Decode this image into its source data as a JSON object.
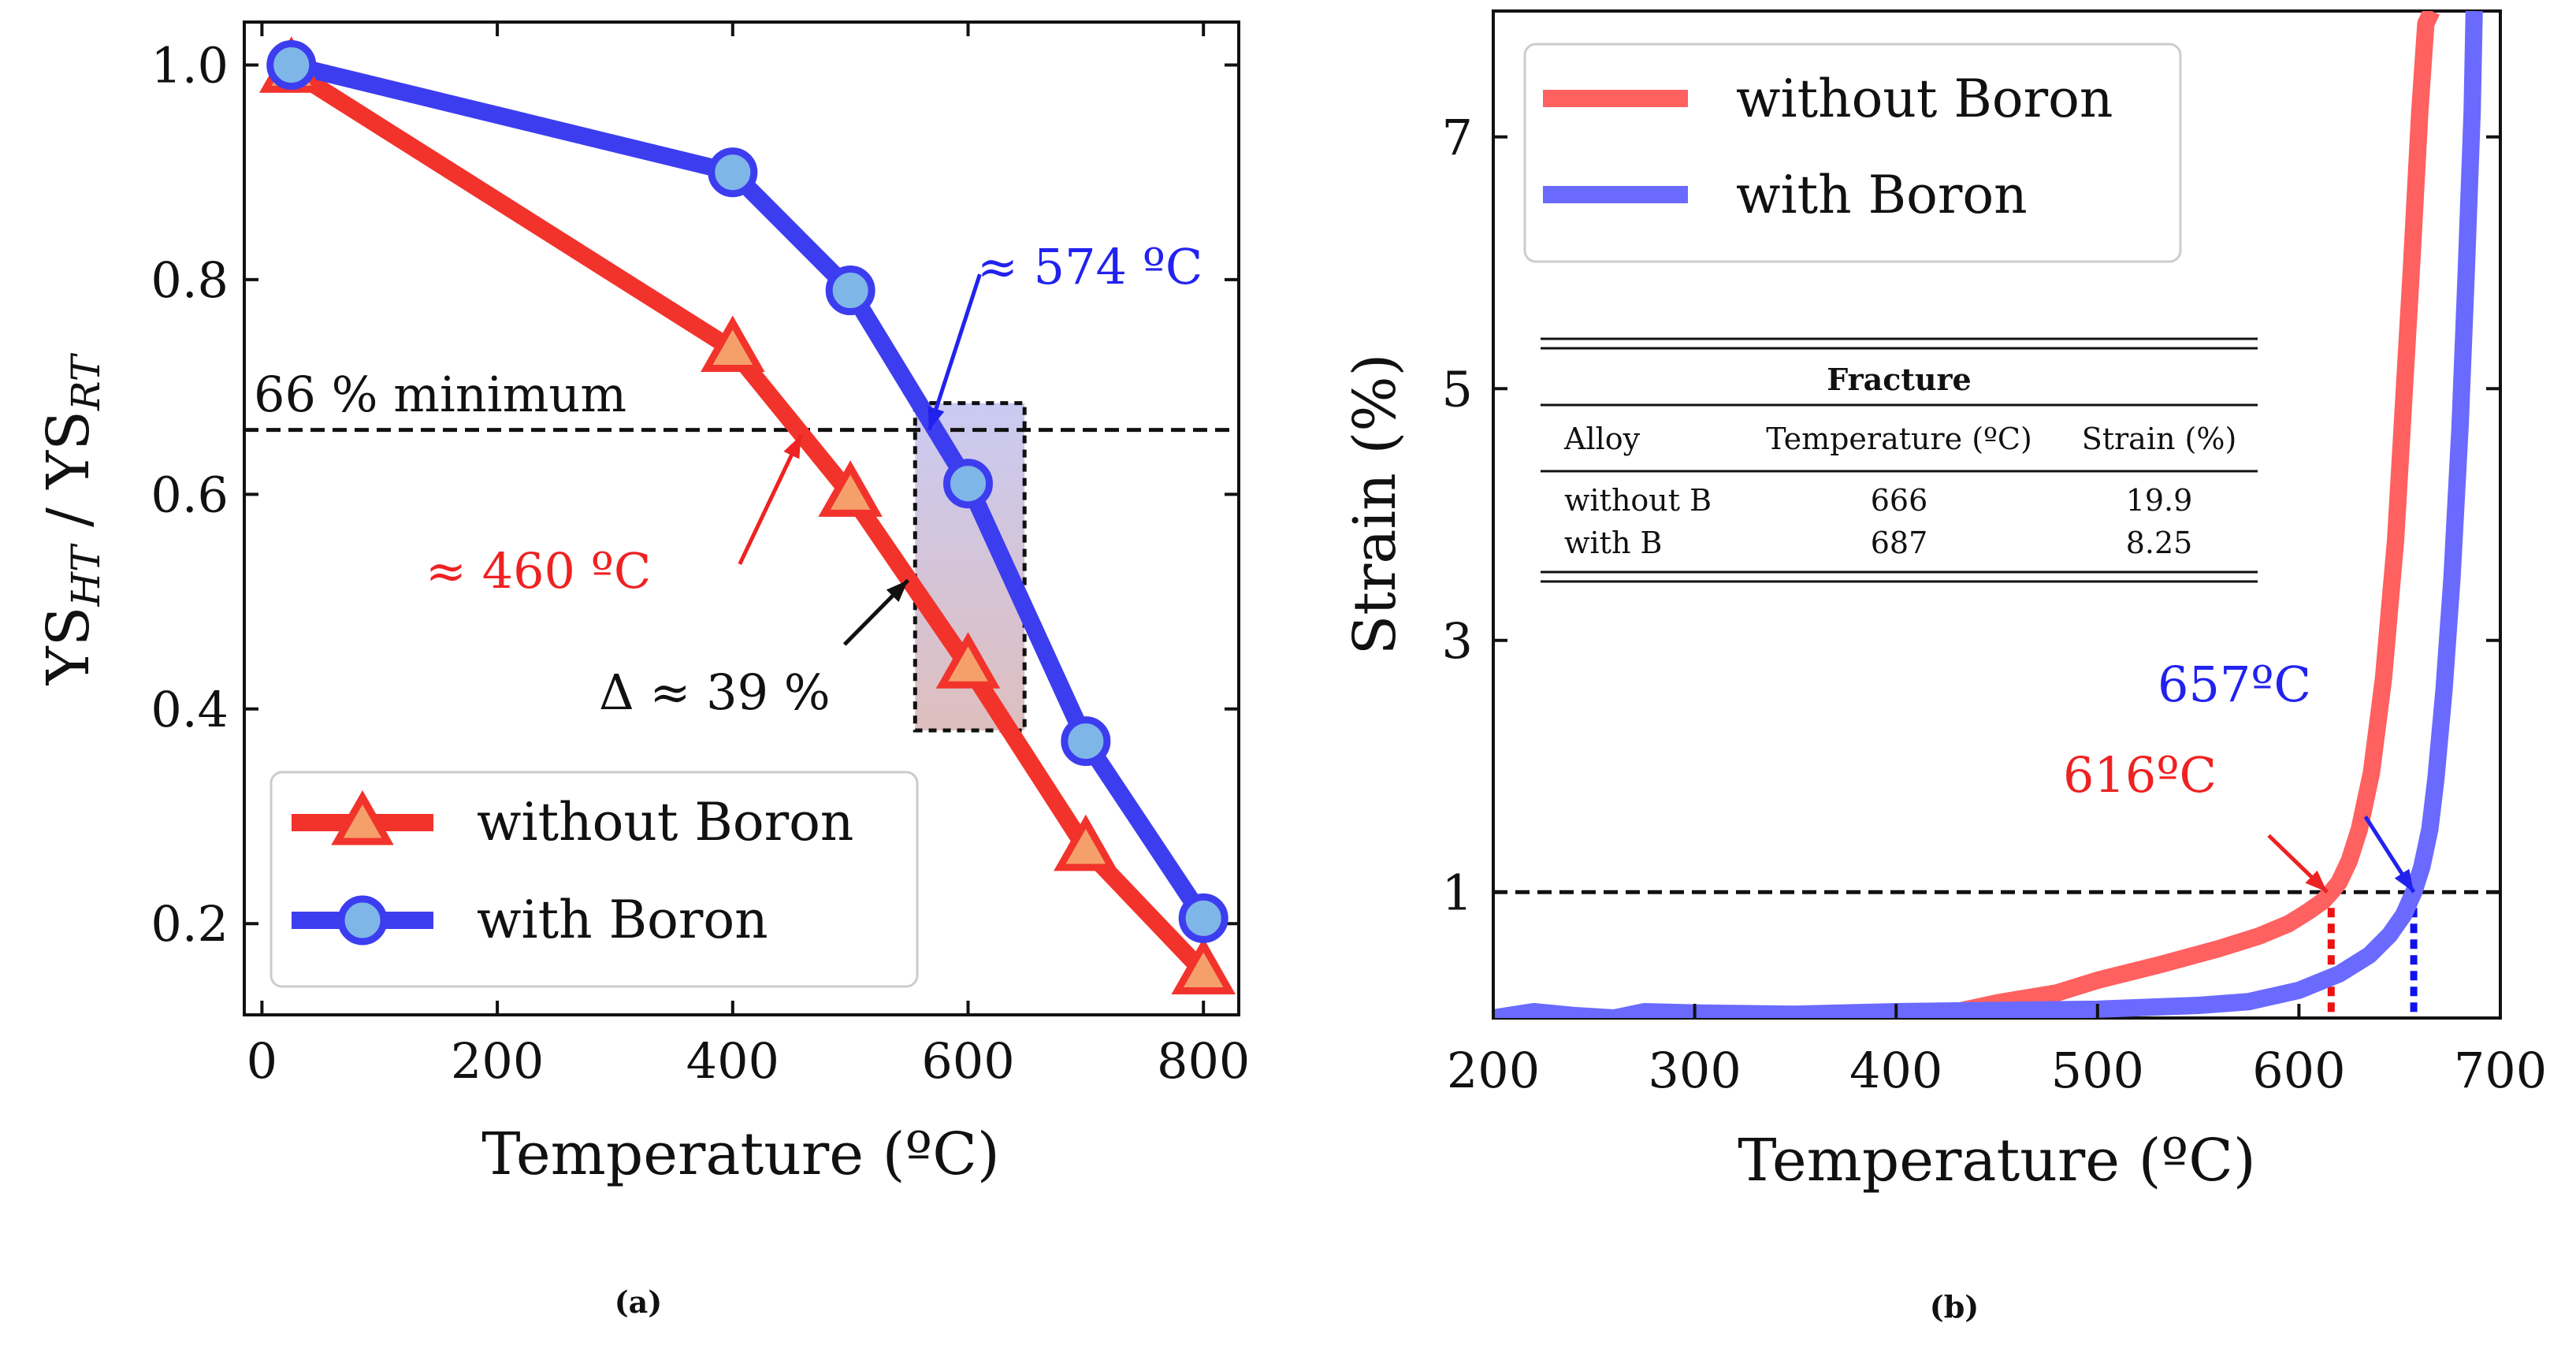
{
  "chart_data": [
    {
      "type": "line",
      "caption": "(a)",
      "xlabel": "Temperature (ºC)",
      "ylabel_main": "YS",
      "ylabel_sub1": "HT",
      "ylabel_mid": " / YS",
      "ylabel_sub2": "RT",
      "xlim": [
        -15,
        830
      ],
      "ylim": [
        0.115,
        1.04
      ],
      "xticks": [
        0,
        200,
        400,
        600,
        800
      ],
      "yticks": [
        0.2,
        0.4,
        0.6,
        0.8,
        1.0
      ],
      "xtick_labels": [
        "0",
        "200",
        "400",
        "600",
        "800"
      ],
      "ytick_labels": [
        "0.2",
        "0.4",
        "0.6",
        "0.8",
        "1.0"
      ],
      "series": [
        {
          "name": "without Boron",
          "color": "#f2332c",
          "marker": "triangle",
          "x": [
            25,
            400,
            500,
            600,
            700,
            800
          ],
          "y": [
            0.995,
            0.735,
            0.6,
            0.44,
            0.27,
            0.155
          ]
        },
        {
          "name": "with Boron",
          "color": "#3d3df0",
          "marker": "circle",
          "x": [
            25,
            400,
            500,
            600,
            700,
            800
          ],
          "y": [
            1.0,
            0.9,
            0.79,
            0.61,
            0.37,
            0.205
          ]
        }
      ],
      "threshold": {
        "y": 0.66,
        "label": "66 % minimum"
      },
      "annotations": [
        {
          "text": "≈ 574 ºC",
          "color": "#2222ee"
        },
        {
          "text": "≈ 460 ºC",
          "color": "#ee2222"
        },
        {
          "text": "Δ ≈ 39 %",
          "color": "#111111"
        }
      ],
      "highlight_box": {
        "x0": 555,
        "x1": 648,
        "y0": 0.38,
        "y1": 0.685
      },
      "arrows": [
        {
          "from": [
            610,
            0.805
          ],
          "to": [
            567,
            0.66
          ],
          "color": "#2222ee"
        },
        {
          "from": [
            406,
            0.535
          ],
          "to": [
            458,
            0.655
          ],
          "color": "#ee2222"
        },
        {
          "from": [
            495,
            0.46
          ],
          "to": [
            549,
            0.52
          ],
          "color": "#111111"
        }
      ],
      "legend_position": "lower-left"
    },
    {
      "type": "line",
      "caption": "(b)",
      "xlabel": "Temperature (ºC)",
      "ylabel": "Strain (%)",
      "xlim": [
        200,
        700
      ],
      "ylim": [
        0,
        8
      ],
      "xticks": [
        200,
        300,
        400,
        500,
        600,
        700
      ],
      "yticks": [
        1,
        3,
        5,
        7
      ],
      "xtick_labels": [
        "200",
        "300",
        "400",
        "500",
        "600",
        "700"
      ],
      "ytick_labels": [
        "1",
        "3",
        "5",
        "7"
      ],
      "series": [
        {
          "name": "without Boron",
          "color": "#ff6060",
          "x": [
            300,
            350,
            400,
            430,
            450,
            480,
            500,
            530,
            560,
            580,
            595,
            605,
            612,
            616,
            620,
            625,
            630,
            636,
            642,
            648,
            652,
            656,
            660,
            663,
            666
          ],
          "y": [
            0.0,
            0.0,
            0.02,
            0.05,
            0.12,
            0.2,
            0.3,
            0.42,
            0.55,
            0.65,
            0.75,
            0.85,
            0.93,
            1.0,
            1.08,
            1.25,
            1.5,
            1.95,
            2.7,
            3.8,
            4.9,
            6.0,
            7.2,
            7.9,
            8.0
          ]
        },
        {
          "name": "with Boron",
          "color": "#6a6aff",
          "x": [
            200,
            220,
            240,
            260,
            275,
            300,
            350,
            400,
            450,
            500,
            550,
            575,
            600,
            620,
            635,
            645,
            652,
            657,
            661,
            665,
            668,
            672,
            676,
            680,
            683,
            686,
            687
          ],
          "y": [
            0.0,
            0.05,
            0.02,
            0.0,
            0.05,
            0.04,
            0.03,
            0.05,
            0.06,
            0.07,
            0.1,
            0.13,
            0.22,
            0.35,
            0.5,
            0.66,
            0.82,
            1.0,
            1.2,
            1.5,
            1.9,
            2.6,
            3.5,
            4.7,
            5.9,
            7.2,
            8.0
          ]
        }
      ],
      "threshold": {
        "y": 1
      },
      "vlines": [
        {
          "x": 616,
          "color": "#ee1111"
        },
        {
          "x": 657,
          "color": "#1111ee"
        }
      ],
      "annotations": [
        {
          "text": "657ºC",
          "color": "#2222ee"
        },
        {
          "text": "616ºC",
          "color": "#ee2222"
        }
      ],
      "arrows": [
        {
          "from": [
            633,
            1.6
          ],
          "to": [
            657,
            1.0
          ],
          "color": "#2222ee"
        },
        {
          "from": [
            585,
            1.45
          ],
          "to": [
            614,
            1.0
          ],
          "color": "#ee2222"
        }
      ],
      "legend_position": "top-left",
      "inset_table": {
        "title": "Fracture",
        "columns": [
          "Alloy",
          "Temperature (ºC)",
          "Strain (%)"
        ],
        "rows": [
          [
            "without B",
            "666",
            "19.9"
          ],
          [
            "with B",
            "687",
            "8.25"
          ]
        ]
      }
    }
  ]
}
